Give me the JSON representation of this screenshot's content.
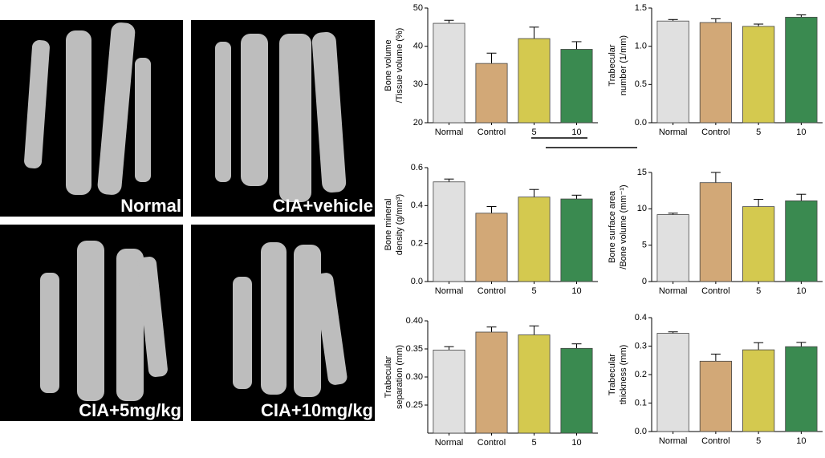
{
  "images": [
    {
      "label": "Normal"
    },
    {
      "label": "CIA+vehicle"
    },
    {
      "label": "CIA+5mg/kg"
    },
    {
      "label": "CIA+10mg/kg"
    }
  ],
  "chart_data": [
    {
      "type": "bar",
      "ylabel": [
        "Bone volume",
        "/Tissue volume (%)"
      ],
      "categories": [
        "Normal",
        "Control",
        "5",
        "10"
      ],
      "values": [
        46,
        35.5,
        42,
        39.2
      ],
      "errors": [
        0.8,
        2.7,
        3,
        2
      ],
      "colors": [
        "#e0e0e0",
        "#d2a877",
        "#d4c94f",
        "#3a8a50"
      ],
      "ylim": [
        20,
        50
      ],
      "yticks": [
        20,
        30,
        40,
        50
      ]
    },
    {
      "type": "bar",
      "ylabel": [
        "Trabecular",
        "number (1/mm)"
      ],
      "categories": [
        "Normal",
        "Control",
        "5",
        "10"
      ],
      "values": [
        1.33,
        1.31,
        1.26,
        1.38
      ],
      "errors": [
        0.02,
        0.05,
        0.03,
        0.03
      ],
      "colors": [
        "#e0e0e0",
        "#d2a877",
        "#d4c94f",
        "#3a8a50"
      ],
      "ylim": [
        0,
        1.5
      ],
      "yticks": [
        {
          "value": 0,
          "label": "0.0"
        },
        0.5,
        {
          "value": 1,
          "label": "1.0"
        },
        1.5
      ]
    },
    {
      "type": "bar",
      "ylabel": [
        "Bone mineral",
        "density (g/mm³)"
      ],
      "categories": [
        "Normal",
        "Control",
        "5",
        "10"
      ],
      "values": [
        0.525,
        0.36,
        0.445,
        0.435
      ],
      "errors": [
        0.015,
        0.035,
        0.04,
        0.02
      ],
      "colors": [
        "#e0e0e0",
        "#d2a877",
        "#d4c94f",
        "#3a8a50"
      ],
      "ylim": [
        0,
        0.6
      ],
      "yticks": [
        {
          "value": 0,
          "label": "0.0"
        },
        0.2,
        0.4,
        0.6
      ]
    },
    {
      "type": "bar",
      "ylabel": [
        "Bone surface area",
        "/Bone volume (mm⁻¹)"
      ],
      "categories": [
        "Normal",
        "Control",
        "5",
        "10"
      ],
      "values": [
        9.2,
        13.6,
        10.3,
        11.1
      ],
      "errors": [
        0.2,
        1.4,
        1,
        0.9
      ],
      "colors": [
        "#e0e0e0",
        "#d2a877",
        "#d4c94f",
        "#3a8a50"
      ],
      "ylim": [
        0,
        15
      ],
      "yticks": [
        0,
        5,
        10,
        15
      ]
    },
    {
      "type": "bar",
      "ylabel": [
        "Trabecular",
        "separation (mm)"
      ],
      "categories": [
        "Normal",
        "Control",
        "5",
        "10"
      ],
      "values": [
        0.348,
        0.38,
        0.375,
        0.351
      ],
      "errors": [
        0.006,
        0.009,
        0.016,
        0.008
      ],
      "colors": [
        "#e0e0e0",
        "#d2a877",
        "#d4c94f",
        "#3a8a50"
      ],
      "ylim": [
        0.2,
        0.4
      ],
      "yticks": [
        0.25,
        {
          "value": 0.3,
          "label": "0.30"
        },
        0.35,
        {
          "value": 0.4,
          "label": "0.40"
        }
      ]
    },
    {
      "type": "bar",
      "ylabel": [
        "Trabecular",
        "thickness (mm)"
      ],
      "categories": [
        "Normal",
        "Control",
        "5",
        "10"
      ],
      "values": [
        0.345,
        0.247,
        0.287,
        0.298
      ],
      "errors": [
        0.005,
        0.025,
        0.025,
        0.015
      ],
      "colors": [
        "#e0e0e0",
        "#d2a877",
        "#d4c94f",
        "#3a8a50"
      ],
      "ylim": [
        0,
        0.4
      ],
      "yticks": [
        {
          "value": 0,
          "label": "0.0"
        },
        0.1,
        0.2,
        0.3,
        0.4
      ]
    }
  ]
}
